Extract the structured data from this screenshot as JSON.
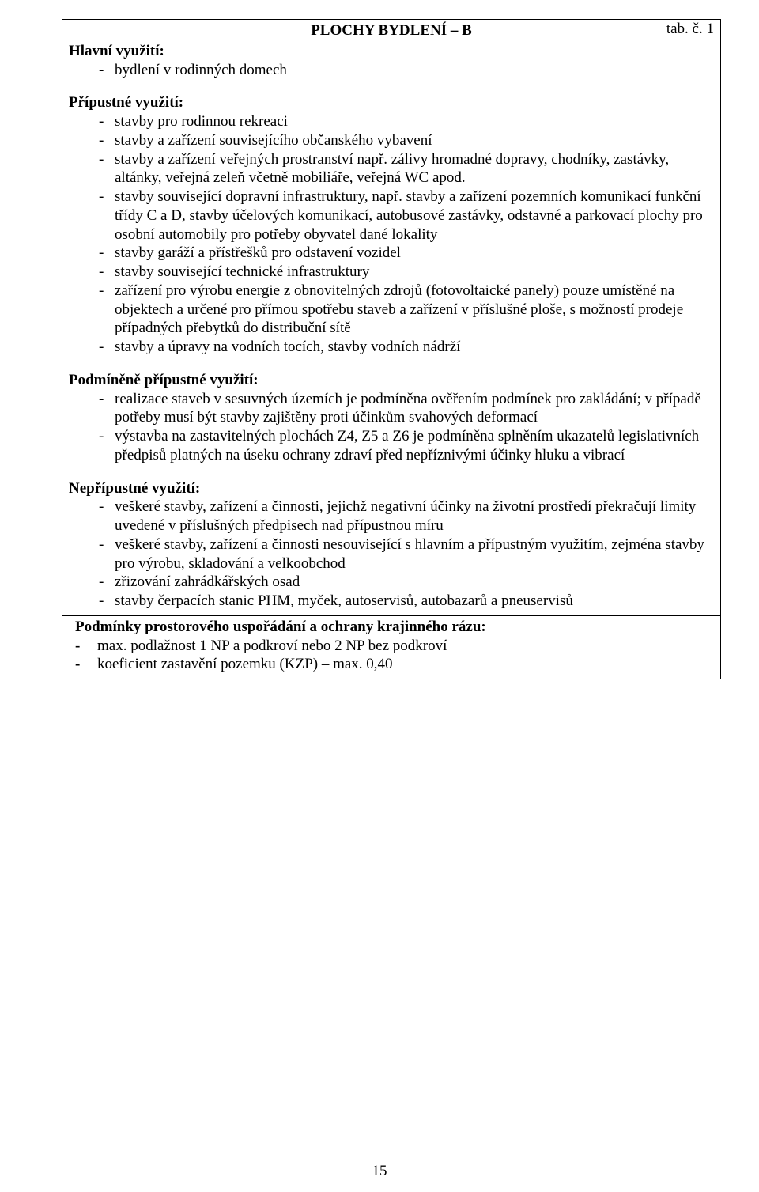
{
  "tab_label": "tab. č. 1",
  "title": "PLOCHY BYDLENÍ – B",
  "page_number": "15",
  "sections": {
    "hlavni": {
      "heading": "Hlavní využití:",
      "items": [
        "bydlení v rodinných domech"
      ]
    },
    "pripustne": {
      "heading": "Přípustné využití:",
      "items": [
        "stavby pro rodinnou rekreaci",
        "stavby a zařízení souvisejícího občanského vybavení",
        "stavby a zařízení veřejných prostranství např. zálivy hromadné dopravy, chodníky, zastávky, altánky, veřejná zeleň včetně mobiliáře, veřejná WC apod.",
        "stavby související dopravní infrastruktury, např. stavby a zařízení pozemních komunikací funkční třídy C a D, stavby účelových komunikací, autobusové zastávky,  odstavné a parkovací plochy  pro osobní automobily pro potřeby obyvatel dané lokality",
        "stavby garáží a přístřešků pro odstavení vozidel",
        "stavby související technické infrastruktury",
        "zařízení pro výrobu energie z obnovitelných zdrojů (fotovoltaické panely) pouze umístěné na objektech a určené pro přímou spotřebu staveb a zařízení v příslušné ploše, s možností prodeje případných přebytků do distribuční sítě",
        "stavby a úpravy na vodních tocích, stavby vodních nádrží"
      ]
    },
    "podminene": {
      "heading": "Podmíněně přípustné využití:",
      "items": [
        "realizace staveb v sesuvných územích je podmíněna ověřením podmínek pro zakládání; v případě potřeby musí být stavby zajištěny proti účinkům svahových deformací",
        "výstavba na zastavitelných plochách Z4, Z5 a Z6 je podmíněna splněním ukazatelů legislativních předpisů platných na úseku ochrany zdraví před nepříznivými účinky hluku a vibrací"
      ]
    },
    "nepripustne": {
      "heading": "Nepřípustné využití:",
      "items": [
        "veškeré stavby, zařízení a činnosti, jejichž negativní účinky na životní prostředí překračují limity uvedené v příslušných předpisech nad přípustnou míru",
        "veškeré stavby, zařízení a činnosti nesouvisející s hlavním a přípustným využitím, zejména stavby pro výrobu, skladování a velkoobchod",
        "zřizování zahrádkářských osad",
        "stavby čerpacích stanic PHM, myček, autoservisů, autobazarů a pneuservisů"
      ]
    },
    "podminky": {
      "heading": "Podmínky prostorového uspořádání a ochrany krajinného rázu:",
      "items": [
        "max. podlažnost 1 NP a podkroví nebo 2 NP bez podkroví",
        "koeficient zastavění pozemku (KZP) – max. 0,40"
      ]
    }
  }
}
